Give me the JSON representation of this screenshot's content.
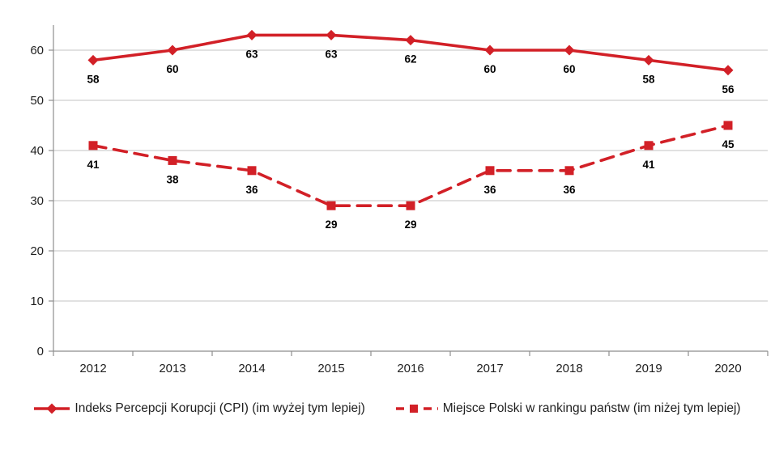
{
  "chart_data": {
    "type": "line",
    "categories": [
      "2012",
      "2013",
      "2014",
      "2015",
      "2016",
      "2017",
      "2018",
      "2019",
      "2020"
    ],
    "series": [
      {
        "name": "Indeks Percepcji Korupcji (CPI) (im wyżej tym lepiej)",
        "values": [
          58,
          60,
          63,
          63,
          62,
          60,
          60,
          58,
          56
        ],
        "marker": "diamond",
        "line_style": "solid"
      },
      {
        "name": "Miejsce Polski w rankingu państw (im niżej tym lepiej)",
        "values": [
          41,
          38,
          36,
          29,
          29,
          36,
          36,
          41,
          45
        ],
        "marker": "square",
        "line_style": "dashed"
      }
    ],
    "title": "",
    "xlabel": "",
    "ylabel": "",
    "ylim": [
      0,
      65
    ],
    "y_ticks": [
      0,
      10,
      20,
      30,
      40,
      50,
      60
    ],
    "grid": true,
    "data_labels": true,
    "legend_position": "bottom",
    "colors": {
      "series_red": "#d22027",
      "grid_line": "#c3c3c3",
      "axis_line": "#8e8e8e",
      "tick_text": "#1f1f1f",
      "data_label_text": "#000000",
      "background": "#ffffff"
    }
  }
}
